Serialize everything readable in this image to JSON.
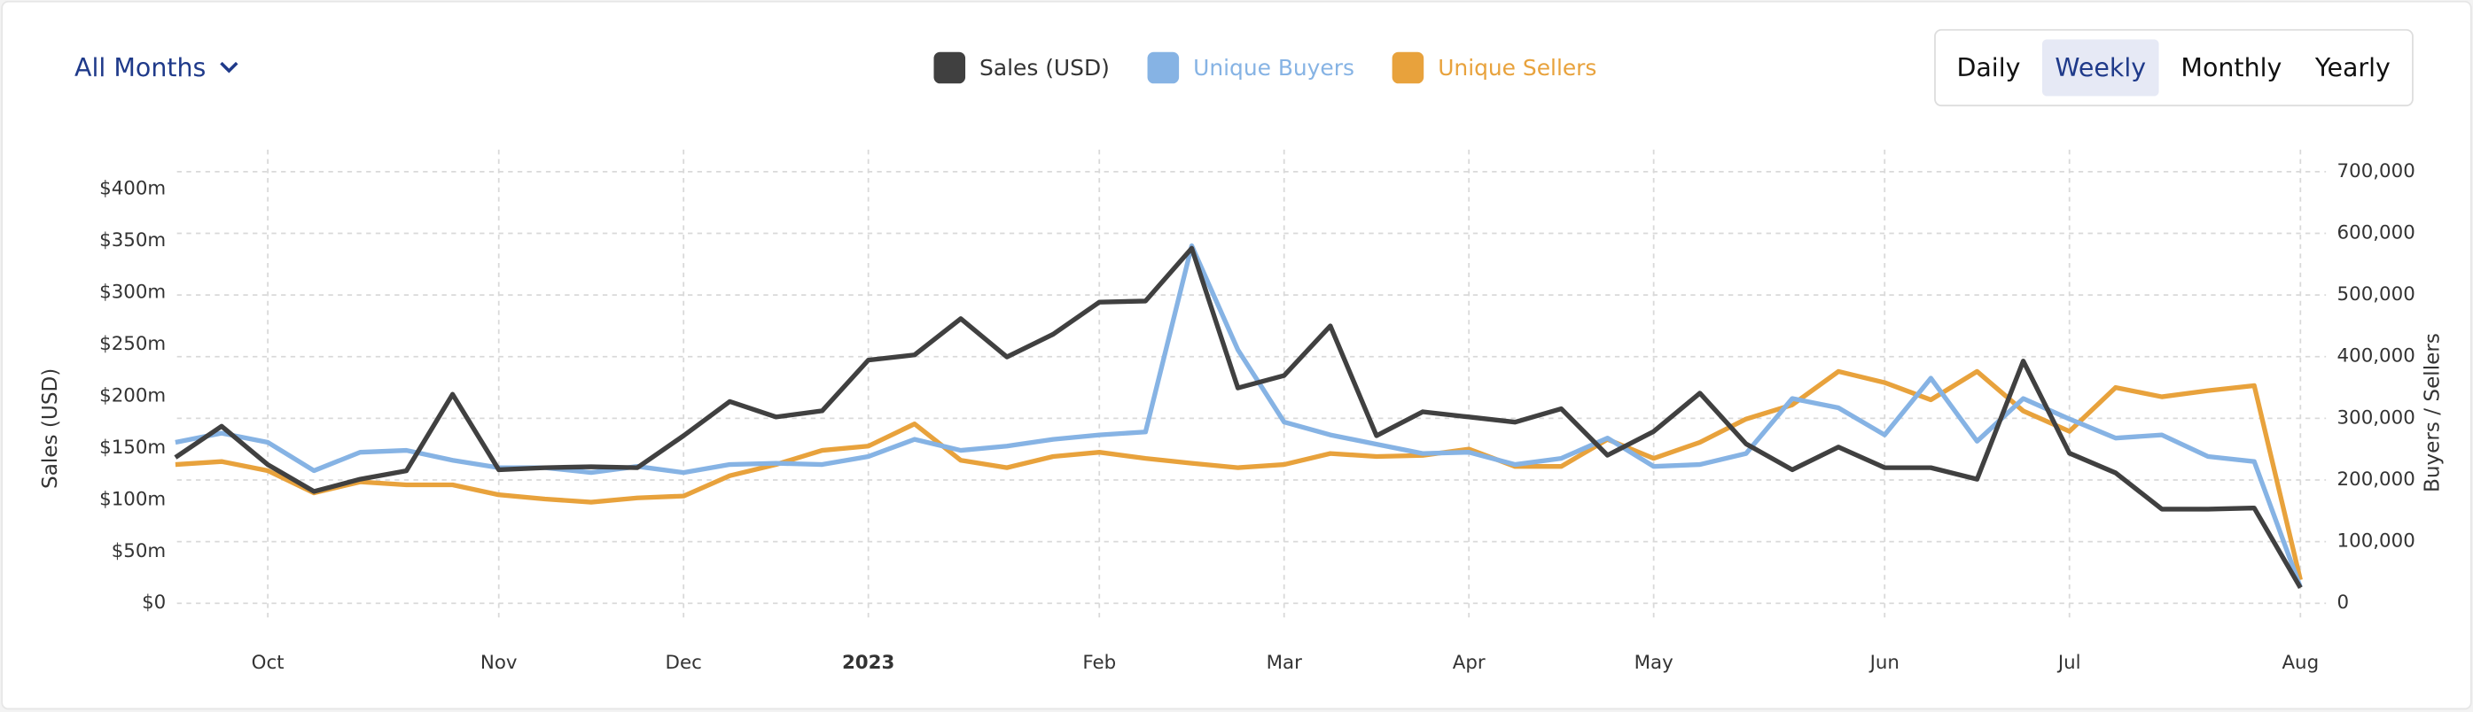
{
  "controls": {
    "dropdown": "All Months",
    "periods": [
      "Daily",
      "Weekly",
      "Monthly",
      "Yearly"
    ],
    "selected_period": 1
  },
  "chart_data": {
    "type": "line",
    "ylabel": "Sales (USD)",
    "y2label": "Buyers / Sellers",
    "categories": [
      null,
      null,
      "Oct",
      null,
      null,
      null,
      null,
      "Nov",
      null,
      null,
      null,
      "Dec",
      null,
      null,
      null,
      "2023",
      null,
      null,
      null,
      null,
      "Feb",
      null,
      null,
      null,
      "Mar",
      null,
      null,
      null,
      "Apr",
      null,
      null,
      null,
      "May",
      null,
      null,
      null,
      null,
      "Jun",
      null,
      null,
      null,
      "Jul",
      null,
      null,
      null,
      null,
      "Aug"
    ],
    "ylim": [
      0,
      417
    ],
    "yticks": [
      {
        "value": 0,
        "label": "$0"
      },
      {
        "value": 50,
        "label": "$50m"
      },
      {
        "value": 100,
        "label": "$100m"
      },
      {
        "value": 150,
        "label": "$150m"
      },
      {
        "value": 200,
        "label": "$200m"
      },
      {
        "value": 250,
        "label": "$250m"
      },
      {
        "value": 300,
        "label": "$300m"
      },
      {
        "value": 350,
        "label": "$350m"
      },
      {
        "value": 400,
        "label": "$400m"
      }
    ],
    "y2lim": [
      0,
      700000
    ],
    "y2ticks": [
      0,
      {
        "value": 100000,
        "label": "100,000"
      },
      {
        "value": 200000,
        "label": "200,000"
      },
      {
        "value": 300000,
        "label": "300,000"
      },
      {
        "value": 400000,
        "label": "400,000"
      },
      {
        "value": 500000,
        "label": "500,000"
      },
      {
        "value": 600000,
        "label": "600,000"
      },
      {
        "value": 700000,
        "label": "700,000"
      }
    ],
    "grid": true,
    "series": [
      {
        "name": "Sales (USD)",
        "color": "#404040",
        "values": [
          141,
          171,
          134,
          108,
          120,
          128,
          202,
          129,
          131,
          132,
          131,
          162,
          195,
          180,
          186,
          235,
          240,
          275,
          238,
          260,
          291,
          292,
          343,
          208,
          220,
          268,
          162,
          185,
          180,
          175,
          188,
          143,
          166,
          203,
          154,
          129,
          151,
          131,
          131,
          120,
          234,
          145,
          126,
          91,
          91,
          92,
          15
        ]
      },
      {
        "name": "Unique Buyers",
        "color": "#86b3e4",
        "axis": "y2",
        "values": [
          261000,
          276000,
          261000,
          215000,
          245000,
          248000,
          232000,
          220000,
          220000,
          212000,
          222000,
          212000,
          225000,
          227000,
          225000,
          238000,
          266000,
          248000,
          255000,
          266000,
          273000,
          278000,
          580000,
          411000,
          294000,
          273000,
          258000,
          243000,
          245000,
          225000,
          235000,
          268000,
          222000,
          225000,
          243000,
          332000,
          317000,
          273000,
          365000,
          263000,
          332000,
          299000,
          268000,
          273000,
          238000,
          230000,
          26000
        ]
      },
      {
        "name": "Unique Sellers",
        "color": "#e8a23c",
        "axis": "y2",
        "values": [
          225000,
          230000,
          215000,
          179000,
          197000,
          192000,
          192000,
          176000,
          169000,
          164000,
          171000,
          174000,
          207000,
          225000,
          248000,
          255000,
          291000,
          232000,
          220000,
          238000,
          245000,
          235000,
          227000,
          220000,
          225000,
          243000,
          238000,
          240000,
          250000,
          222000,
          222000,
          266000,
          235000,
          261000,
          299000,
          322000,
          376000,
          358000,
          330000,
          376000,
          312000,
          279000,
          350000,
          335000,
          345000,
          353000,
          38000
        ]
      }
    ]
  }
}
